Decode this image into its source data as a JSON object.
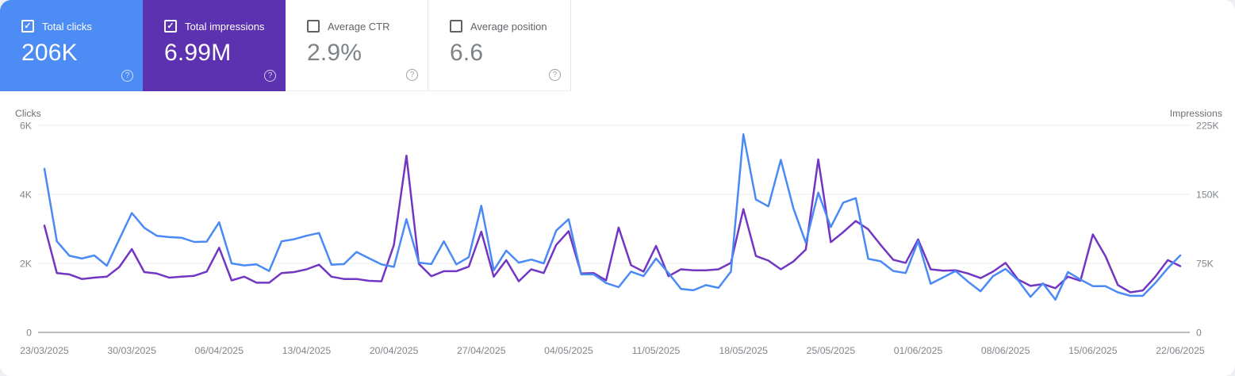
{
  "icons": {
    "check": "✓",
    "help": "?"
  },
  "cards": [
    {
      "id": "total-clicks",
      "label": "Total clicks",
      "value": "206K",
      "checked": true,
      "bg": "#4d8cf5"
    },
    {
      "id": "total-impressions",
      "label": "Total impressions",
      "value": "6.99M",
      "checked": true,
      "bg": "#5c32b0"
    },
    {
      "id": "average-ctr",
      "label": "Average CTR",
      "value": "2.9%",
      "checked": false,
      "bg": ""
    },
    {
      "id": "average-position",
      "label": "Average position",
      "value": "6.6",
      "checked": false,
      "bg": ""
    }
  ],
  "chart_data": {
    "type": "line",
    "grid": true,
    "legend_position": "none",
    "x_tick_labels": [
      "23/03/2025",
      "30/03/2025",
      "06/04/2025",
      "13/04/2025",
      "20/04/2025",
      "27/04/2025",
      "04/05/2025",
      "11/05/2025",
      "18/05/2025",
      "25/05/2025",
      "01/06/2025",
      "08/06/2025",
      "15/06/2025",
      "22/06/2025"
    ],
    "left_axis": {
      "label": "Clicks",
      "ticks": [
        "0",
        "2K",
        "4K",
        "6K"
      ],
      "max": 6000
    },
    "right_axis": {
      "label": "Impressions",
      "ticks": [
        "0",
        "75K",
        "150K",
        "225K"
      ],
      "max": 225000
    },
    "series": [
      {
        "name": "Clicks",
        "axis": "left",
        "color": "#4a8af5",
        "values": [
          4740,
          2640,
          2220,
          2140,
          2230,
          1930,
          2700,
          3460,
          3030,
          2800,
          2760,
          2740,
          2620,
          2630,
          3190,
          2000,
          1940,
          1970,
          1780,
          2640,
          2700,
          2800,
          2880,
          1960,
          1980,
          2330,
          2150,
          1970,
          1900,
          3280,
          2020,
          1980,
          2640,
          1970,
          2180,
          3670,
          1800,
          2370,
          2020,
          2110,
          2000,
          2950,
          3280,
          1680,
          1680,
          1430,
          1310,
          1760,
          1630,
          2140,
          1720,
          1260,
          1220,
          1370,
          1290,
          1760,
          5740,
          3850,
          3650,
          5000,
          3600,
          2600,
          4050,
          3050,
          3760,
          3890,
          2130,
          2060,
          1780,
          1720,
          2640,
          1410,
          1590,
          1780,
          1470,
          1190,
          1630,
          1840,
          1510,
          1030,
          1420,
          950,
          1750,
          1530,
          1340,
          1340,
          1160,
          1060,
          1060,
          1430,
          1860,
          2230
        ]
      },
      {
        "name": "Impressions",
        "axis": "right",
        "color": "#7136c2",
        "values": [
          116000,
          64500,
          63000,
          58000,
          59500,
          60500,
          71000,
          90500,
          65500,
          64000,
          59500,
          60500,
          61500,
          66000,
          92000,
          56500,
          60500,
          54000,
          54000,
          64500,
          65500,
          68500,
          73500,
          60500,
          58000,
          58000,
          56000,
          55500,
          95000,
          192000,
          74500,
          61000,
          66500,
          66500,
          71500,
          109500,
          60500,
          78500,
          55500,
          68500,
          64500,
          95000,
          110000,
          64000,
          64500,
          56500,
          114000,
          73000,
          66000,
          94000,
          61000,
          68500,
          67500,
          67500,
          68500,
          75500,
          134000,
          83000,
          78000,
          68500,
          77000,
          90000,
          188000,
          98000,
          109000,
          121000,
          112000,
          95000,
          79000,
          75500,
          101000,
          68500,
          67000,
          67500,
          64000,
          59000,
          66000,
          75500,
          57500,
          50500,
          52500,
          48000,
          60500,
          56000,
          106500,
          83000,
          51500,
          43500,
          45500,
          60500,
          78500,
          72000
        ]
      }
    ]
  }
}
